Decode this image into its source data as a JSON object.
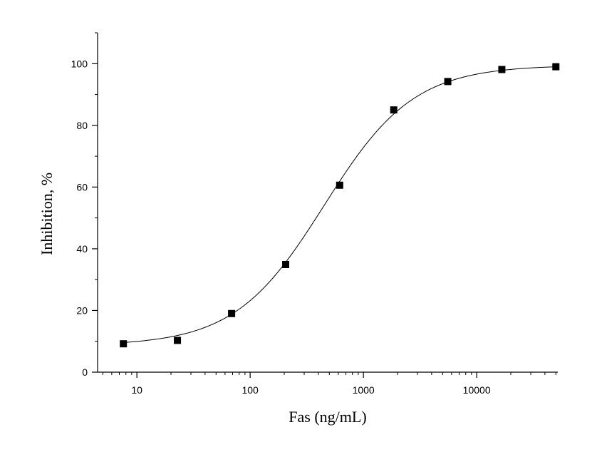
{
  "chart_data": {
    "type": "scatter",
    "title": "",
    "xlabel": "Fas (ng/mL)",
    "ylabel": "Inhibition, %",
    "xscale": "log",
    "xlim": [
      4.5,
      52000
    ],
    "ylim": [
      0,
      110
    ],
    "x_ticks": [
      10,
      100,
      1000,
      10000
    ],
    "x_tick_labels": [
      "10",
      "100",
      "1000",
      "10000"
    ],
    "y_ticks": [
      0,
      20,
      40,
      60,
      80,
      100
    ],
    "y_tick_labels": [
      "0",
      "20",
      "40",
      "60",
      "80",
      "100"
    ],
    "grid": false,
    "legend": "none",
    "series": [
      {
        "name": "Inhibition",
        "marker": "square",
        "x": [
          7.6,
          22.8,
          68.6,
          205.8,
          617,
          1852,
          5556,
          16667,
          50000
        ],
        "y": [
          9.2,
          10.3,
          19.0,
          34.9,
          60.6,
          85.0,
          94.2,
          98.1,
          99.0
        ]
      }
    ],
    "fit": {
      "type": "four-parameter-logistic",
      "bottom": 8.6,
      "top": 99.5,
      "ec50": 450,
      "hill": 1.1
    },
    "colors": {
      "marker": "#000000",
      "curve": "#000000",
      "axis": "#000000"
    }
  }
}
